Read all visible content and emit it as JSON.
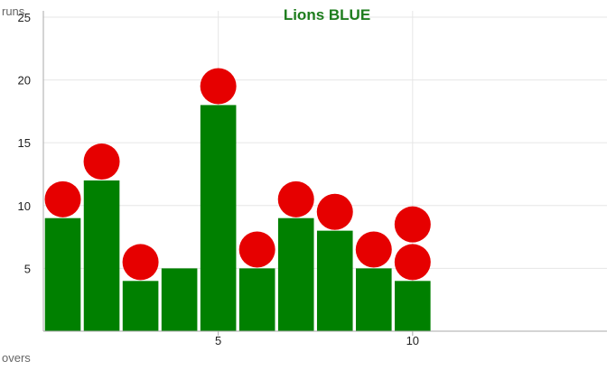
{
  "chart_data": {
    "type": "bar",
    "title": "Lions BLUE",
    "ylabel": "runs",
    "xlabel": "overs",
    "x": [
      1,
      2,
      3,
      4,
      5,
      6,
      7,
      8,
      9,
      10
    ],
    "values": [
      9,
      12,
      4,
      5,
      18,
      5,
      9,
      8,
      5,
      4
    ],
    "wickets": [
      {
        "over": 1,
        "runs": 10.5
      },
      {
        "over": 2,
        "runs": 13.5
      },
      {
        "over": 3,
        "runs": 5.5
      },
      {
        "over": 5,
        "runs": 19.5
      },
      {
        "over": 6,
        "runs": 6.5
      },
      {
        "over": 7,
        "runs": 10.5
      },
      {
        "over": 8,
        "runs": 9.5
      },
      {
        "over": 9,
        "runs": 6.5
      },
      {
        "over": 10,
        "runs": 5.5
      },
      {
        "over": 10,
        "runs": 8.5
      }
    ],
    "xlim": [
      0.5,
      15
    ],
    "ylim": [
      0,
      25.5
    ],
    "yticks": [
      5,
      10,
      15,
      20,
      25
    ],
    "xticks": [
      5,
      10
    ],
    "grid": true,
    "colors": {
      "bar": "#008000",
      "wicket": "#e60000",
      "title": "#1e7d1e",
      "grid": "#e6e6e6",
      "axis": "#aaaaaa"
    }
  }
}
